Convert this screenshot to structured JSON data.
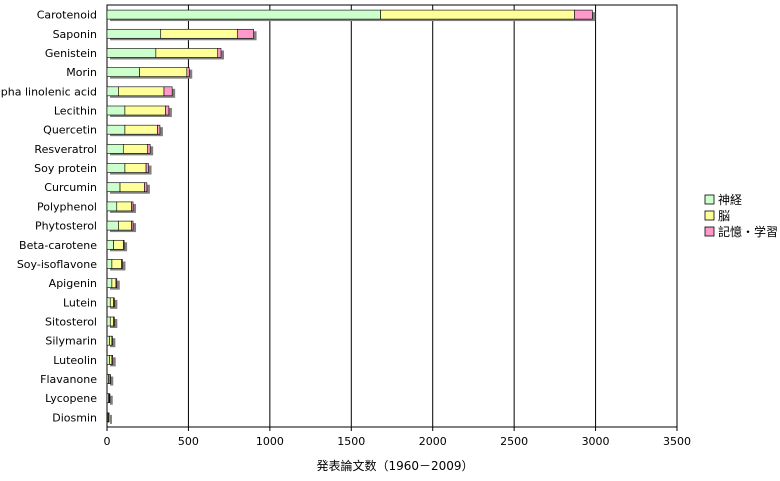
{
  "chart_data": {
    "type": "bar",
    "orientation": "horizontal",
    "stacked": true,
    "categories": [
      "Carotenoid",
      "Saponin",
      "Genistein",
      "Morin",
      "Alpha linolenic acid",
      "Lecithin",
      "Quercetin",
      "Resveratrol",
      "Soy protein",
      "Curcumin",
      "Polyphenol",
      "Phytosterol",
      "Beta-carotene",
      "Soy-isoflavone",
      "Apigenin",
      "Lutein",
      "Sitosterol",
      "Silymarin",
      "Luteolin",
      "Flavanone",
      "Lycopene",
      "Diosmin"
    ],
    "series": [
      {
        "name": "神経",
        "color": "#ccffcc",
        "values": [
          1680,
          330,
          300,
          200,
          70,
          110,
          110,
          100,
          110,
          80,
          60,
          70,
          40,
          30,
          30,
          20,
          20,
          15,
          15,
          10,
          10,
          5
        ]
      },
      {
        "name": "脳",
        "color": "#ffff99",
        "values": [
          1190,
          470,
          380,
          290,
          280,
          250,
          200,
          150,
          130,
          150,
          90,
          80,
          60,
          60,
          25,
          20,
          20,
          15,
          15,
          8,
          5,
          5
        ]
      },
      {
        "name": "記憶・学習",
        "color": "#ff99cc",
        "values": [
          110,
          100,
          20,
          15,
          50,
          20,
          15,
          15,
          15,
          15,
          10,
          10,
          5,
          5,
          5,
          5,
          5,
          3,
          5,
          2,
          2,
          2
        ]
      }
    ],
    "xlabel": "発表論文数（1960－2009）",
    "ylabel": "",
    "xlim": [
      0,
      3500
    ],
    "xticks": [
      0,
      500,
      1000,
      1500,
      2000,
      2500,
      3000,
      3500
    ],
    "grid": "vertical",
    "legend_position": "right"
  }
}
